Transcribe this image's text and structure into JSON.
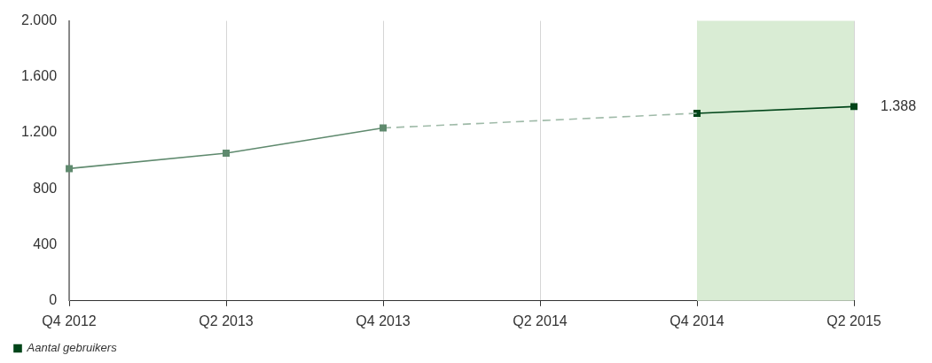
{
  "chart_data": {
    "type": "line",
    "categories": [
      "Q4 2012",
      "Q2 2013",
      "Q4 2013",
      "Q2 2014",
      "Q4 2014",
      "Q2 2015"
    ],
    "series": [
      {
        "color": "#5f8a6e",
        "line_style": "solid",
        "marker": "square",
        "values": [
          945,
          1055,
          1235,
          null,
          null,
          null
        ]
      },
      {
        "color": "#9fbaa8",
        "line_style": "dashed",
        "marker": "none",
        "values": [
          null,
          null,
          1235,
          null,
          1340,
          null
        ]
      },
      {
        "name": "Aantal gebruikers",
        "color": "#004519",
        "line_style": "solid",
        "marker": "square",
        "values": [
          null,
          null,
          null,
          null,
          1340,
          1388
        ],
        "value_labels": [
          null,
          null,
          null,
          null,
          null,
          "1.388"
        ]
      }
    ],
    "ylim": [
      0,
      2000
    ],
    "yticks": [
      {
        "value": 0,
        "label": "0"
      },
      {
        "value": 400,
        "label": "400"
      },
      {
        "value": 800,
        "label": "800"
      },
      {
        "value": 1200,
        "label": "1.200"
      },
      {
        "value": 1600,
        "label": "1.600"
      },
      {
        "value": 2000,
        "label": "2.000"
      }
    ],
    "bands": [
      {
        "axis": "x",
        "from": "Q4 2014",
        "to": "Q2 2015",
        "color": "#d9ecd4"
      }
    ],
    "grid": "x",
    "legend": "bottom left"
  }
}
